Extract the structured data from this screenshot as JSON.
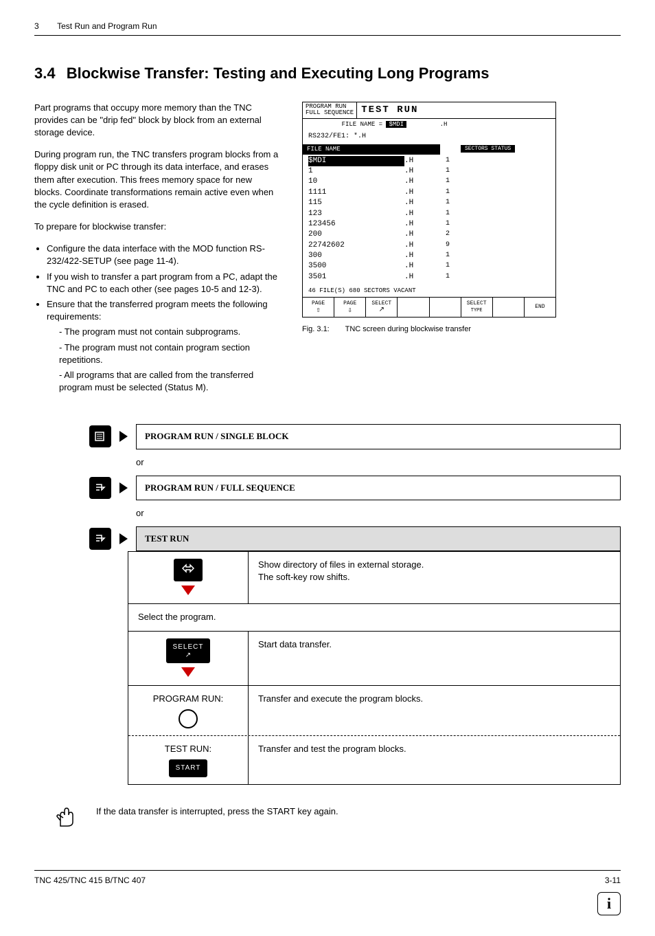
{
  "header": {
    "page_num": "3",
    "chapter": "Test Run and Program Run"
  },
  "section": {
    "number": "3.4",
    "title": "Blockwise Transfer: Testing and Executing Long Programs"
  },
  "body": {
    "p1": "Part programs that occupy more memory than the TNC provides can be \"drip fed\" block by block from an external storage device.",
    "p2": "During program run, the TNC transfers program blocks from a floppy disk unit or PC through its data interface, and erases them after execution. This frees memory space for new blocks. Coordinate transformations remain active even when the cycle definition is erased.",
    "p3": "To prepare for blockwise transfer:",
    "b1": "Configure the data interface with the MOD function RS-232/422-SETUP (see page 11-4).",
    "b2": "If you wish to transfer a part program from a PC, adapt the TNC and PC to each other (see pages 10-5 and 12-3).",
    "b3": "Ensure that the transferred program meets the following requirements:",
    "s1": "The program must not contain subprograms.",
    "s2": "The program must not contain program section repetitions.",
    "s3": "All programs that are called from the transferred program must be selected (Status M)."
  },
  "tnc": {
    "top_left": "PROGRAM RUN\nFULL SEQUENCE",
    "top_right": "TEST RUN",
    "filename_label": "FILE NAME =",
    "filename_value": "$MDI",
    "filename_ext": ".H",
    "interface": "RS232/FE1: *.H",
    "col1": "FILE NAME",
    "col2": "SECTORS STATUS",
    "files": [
      {
        "name": "$MDI",
        "ext": ".H",
        "sec": "1",
        "hl": true
      },
      {
        "name": "1",
        "ext": ".H",
        "sec": "1"
      },
      {
        "name": "10",
        "ext": ".H",
        "sec": "1"
      },
      {
        "name": "1111",
        "ext": ".H",
        "sec": "1"
      },
      {
        "name": "115",
        "ext": ".H",
        "sec": "1"
      },
      {
        "name": "123",
        "ext": ".H",
        "sec": "1"
      },
      {
        "name": "123456",
        "ext": ".H",
        "sec": "1"
      },
      {
        "name": "200",
        "ext": ".H",
        "sec": "2"
      },
      {
        "name": "22742602",
        "ext": ".H",
        "sec": "9"
      },
      {
        "name": "300",
        "ext": ".H",
        "sec": "1"
      },
      {
        "name": "3500",
        "ext": ".H",
        "sec": "1"
      },
      {
        "name": "3501",
        "ext": ".H",
        "sec": "1"
      }
    ],
    "footer_line": "46 FILE(S) 680 SECTORS VACANT",
    "sk1": "PAGE",
    "sk2": "PAGE",
    "sk3": "SELECT",
    "sk4": "",
    "sk5": "",
    "sk6": "SELECT",
    "sk7": "",
    "sk8": "END",
    "caption_num": "Fig. 3.1:",
    "caption_text": "TNC screen during blockwise transfer"
  },
  "proc": {
    "mode1": "PROGRAM RUN / SINGLE BLOCK",
    "or": "or",
    "mode2": "PROGRAM RUN / FULL SEQUENCE",
    "mode3": "TEST RUN",
    "step1_desc1": "Show directory of files in external storage.",
    "step1_desc2": "The soft-key row shifts.",
    "step2": "Select the program.",
    "step3_key": "SELECT",
    "step3_desc": "Start data transfer.",
    "step4_label": "PROGRAM RUN:",
    "step4_desc": "Transfer and execute the program blocks.",
    "step5_label": "TEST RUN:",
    "step5_key": "START",
    "step5_desc": "Transfer and test the program blocks."
  },
  "note": "If the data transfer is interrupted, press the START key again.",
  "footer": {
    "left": "TNC 425/TNC 415 B/TNC 407",
    "right": "3-11"
  }
}
